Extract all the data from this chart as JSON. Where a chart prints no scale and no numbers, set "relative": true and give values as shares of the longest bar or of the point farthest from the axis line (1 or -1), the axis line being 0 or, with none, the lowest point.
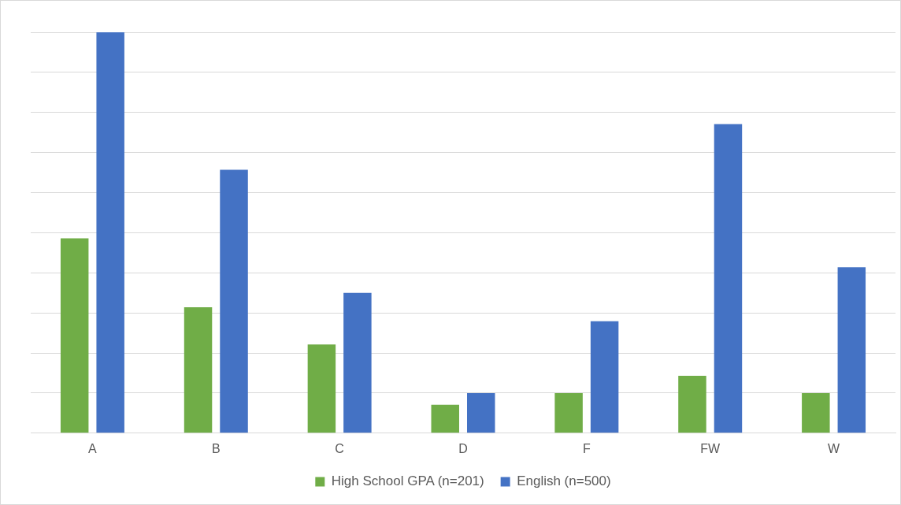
{
  "chart_data": {
    "type": "bar",
    "relative": true,
    "categories": [
      "A",
      "B",
      "C",
      "D",
      "F",
      "FW",
      "W"
    ],
    "series": [
      {
        "name": "High School GPA (n=201)",
        "color": "#70ad47",
        "values": [
          0.486,
          0.314,
          0.221,
          0.071,
          0.1,
          0.143,
          0.1
        ]
      },
      {
        "name": "English (n=500)",
        "color": "#4472c4",
        "values": [
          1,
          0.657,
          0.35,
          0.1,
          0.279,
          0.771,
          0.414
        ]
      }
    ],
    "grid": "y",
    "legend": "bottom"
  }
}
